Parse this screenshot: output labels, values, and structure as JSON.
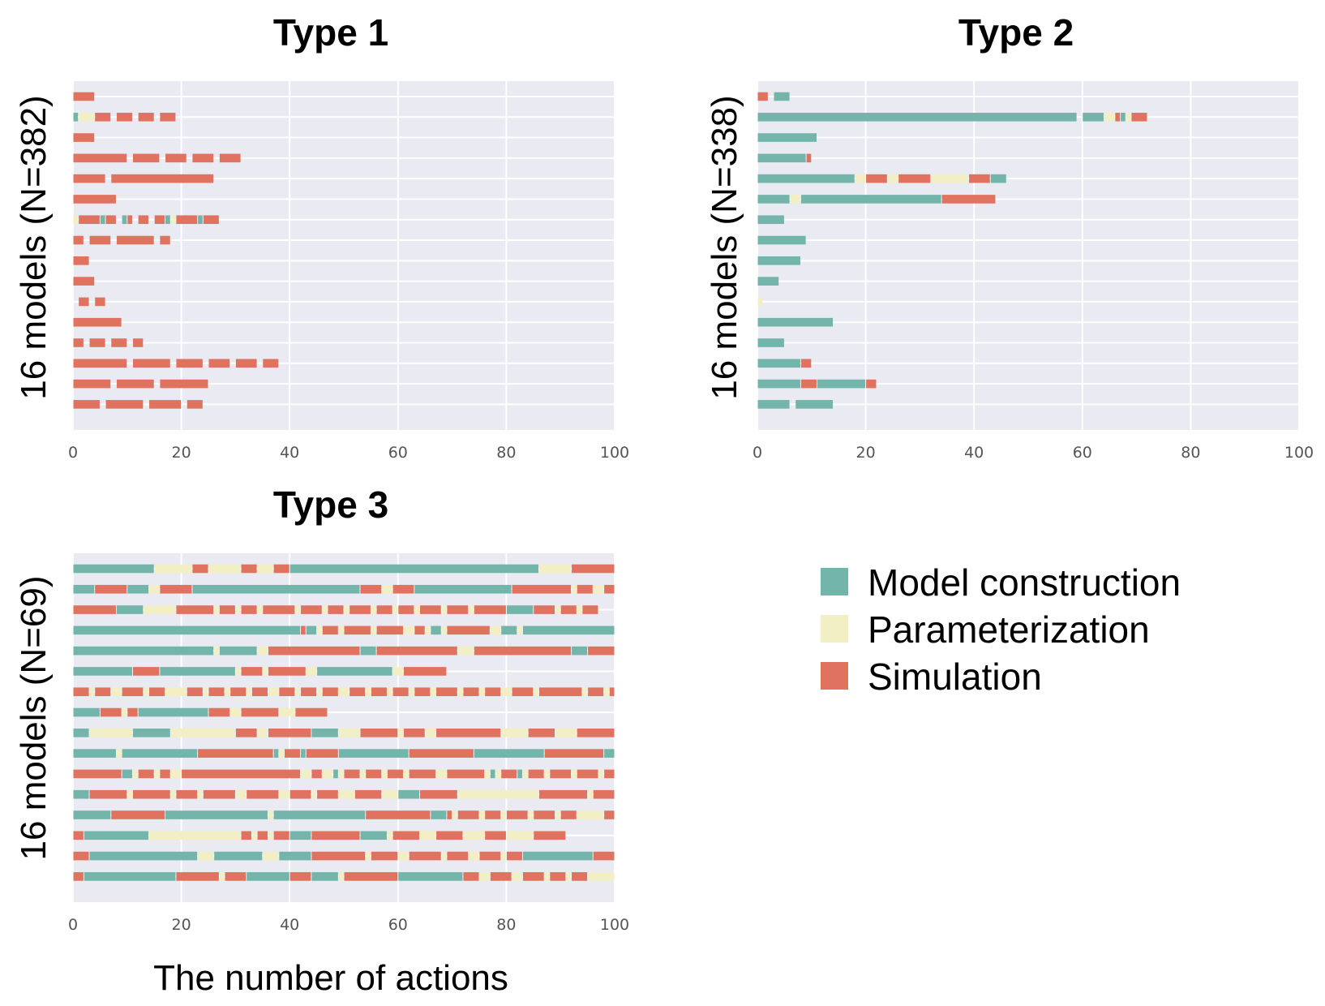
{
  "colors": {
    "model_construction": "#73b5ab",
    "parameterization": "#f2efc4",
    "simulation": "#df735f",
    "plot_background": "#eaeaf2",
    "grid": "#ffffff"
  },
  "x_axis_label": "The number of actions",
  "legend": [
    {
      "key": "C",
      "label": "Model construction",
      "color": "#73b5ab"
    },
    {
      "key": "P",
      "label": "Parameterization",
      "color": "#f2efc4"
    },
    {
      "key": "S",
      "label": "Simulation",
      "color": "#df735f"
    }
  ],
  "chart_data": [
    {
      "type": "bar",
      "subtype": "stacked-horizontal-sequence",
      "title": "Type 1",
      "ylabel": "16 models (N=382)",
      "xlabel": "",
      "xlim": [
        0,
        100
      ],
      "xticks": [
        0,
        20,
        40,
        60,
        80,
        100
      ],
      "grid": true,
      "rows": [
        "SSSS",
        "CPPPSSSGSSSGSSSGSSS",
        "SSSS",
        "SSSSSSSSSSGSSSSSGSSSSGSSSSGSSSS",
        "SSSSSSGSSSSSSSSSSSSSSSSSSS",
        "SSSSSSSS",
        "PSSSSCSSGCSGSSGSSCPSSSSCSSS",
        "SSGSSSSGSSSSSSSGSS",
        "SSS",
        "SSSS",
        "GSSGSS",
        "SSSSSSSSS",
        "SSGSSSGSSSGSS",
        "SSSSSSSSSSGSSSSSSSGSSSSSGSSSSGSSSSGSSS",
        "SSSSSSSGSSSSSSSGSSSSSSSSS",
        "SSSSSGSSSSSSSGSSSSSSGSSS"
      ]
    },
    {
      "type": "bar",
      "subtype": "stacked-horizontal-sequence",
      "title": "Type 2",
      "ylabel": "16 models (N=338)",
      "xlabel": "",
      "xlim": [
        0,
        100
      ],
      "xticks": [
        0,
        20,
        40,
        60,
        80,
        100
      ],
      "grid": true,
      "rows": [
        "SSGCCC",
        "CCCCCCCCCCCCCCCCCCCCCCCCCCCCCCCCCCCCCCCCCCCCCCCCCCCCCCCCCCCGCCCCPPSCPSSS",
        "CCCCCCCCCCC",
        "CCCCCCCCCS",
        "CCCCCCCCCCCCCCCCCCPPSSSSPPSSSSSSPPPPPPPSSSSCCC",
        "CCCCCCPPCCCCCCCCCCCCCCCCCCCCCCCCCCSSSSSSSSSS",
        "CCCCC",
        "CCCCCCCCC",
        "CCCCCCCC",
        "CCCC",
        "P",
        "CCCCCCCCCCCCCC",
        "CCCCC",
        "CCCCCCCCSS",
        "CCCCCCCCSSSCCCCCCCCCSS",
        "CCCCCCGCCCCCCC"
      ]
    },
    {
      "type": "bar",
      "subtype": "stacked-horizontal-sequence",
      "title": "Type 3",
      "ylabel": "16 models (N=69)",
      "xlabel": "The number of actions",
      "xlim": [
        0,
        100
      ],
      "xticks": [
        0,
        20,
        40,
        60,
        80,
        100
      ],
      "grid": true,
      "rows": [
        "CCCCCCCCCCCCCCCPPPPPPPSSSPPPPPPSSSPPPSSSCCCCCCCCCCCCCCCCCCCCCCCCCCCCCCCCCCCCCCCCCCCCCCPPPPPPSSSSSSSSS",
        "CCCCSSSSSSCCCCPPSSSSSSCCCCCCCCCCCCCCCCCCCCCCCCCCCCCCCSSSSPPSSSSCCCCCCCCCCCCCCCCCCSSSSSSSSSSSPSSSPPSSSS",
        "SSSSSSSSCCCCCPPPPPPSSSSSSSPSSSPSSSPSSSSSSPSSSSPSSSPSSSSPSSSPSSSPSSSSPSSSSPSSSSSSCCCCCSSSSPSSSPSSS",
        "CCCCCCCCCCCCCCCCCCCCCCCCCCCCCCCCCCCCCCCCCCSCCPSSSPSSSSSPSSSSSPPSSPCCPSSSSSSSSPPCCCPCCCCCCCCCCCCCCCCCCCCCC",
        "CCCCCCCCCCCCCCCCCCCCCCCCCCPCCCCCCCPPSSSSSSSSSSSSSSSSSCCCSSSSSSSSSSSSSSSPPPSSSSSSSSSSSSSSSSSSCCCSSSSSSSSSSSSS",
        "CCCCCCCCCCCSSSSSCCCCCCCCCCCCCCPSSSSPSSSSSSSPPCCCCCCCCCCCCCCPPSSSSSSSS",
        "SSSPSSSPPSSSSPSSSPPPPSSSPSSSPSSSPSSSPPSSSPSSSPSSSPPSSSPSSSPSSSPSSSPSSSSPSSSPSSSPPSSSSPSSSSSSSSPSSSPS",
        "CCCCCSSSSPSSCCCCCCCCCCCCCSSSSPPSSSSSSSPPPSSSSSS",
        "CCCPPPPPPPPCCCCCCCPPPPPPPPPPPPSSSSPPSSSSSSSSCCCCCPPPPSSSSSSSPSSSSPPSSSSSSSSSSSSPPPPPSSSSSPPPPSSSSSSSSS",
        "CCCCCCCCPCCCCCCCCCCCCCCSSSSSSSSSSSSSSCPSSSCSSSSSSCCCCCCCCCCCCCSSSSSSSSSSSSCCCCCCCCCCCCCSSSSSSSSSSSCCCCPPPPSSSSSSS",
        "SSSSSSSSSCCPSSSPSSPPSSSSSSSSSSSSSSSSSSSSSSPPSSPPCPSSSPSSSPSSSPSSSSSPPSSSSSSSPCPSSSCPSSSPSSSSPSSSSPSSSSSSCPSSSS",
        "CCCSSSSSSSPSSSSSSSPSSSSPSSSSSSPPSSSSSSPPSSSSPSSSSPPPSSSSSPPPCCCCSSSSSSSPPPPPPPPPPPPPPPSSSSSSSSSPSSSS",
        "CCCCCCCSSSSSSSSSSCCCCCCCCCCCCCCCCCCCPCCCCCCCCCCCCCCCCCSSSSSSSSSSSSCCCSPSSSSPSSSPSSSSPSSSSPSSSPPPPPSSSS",
        "SSCCCCCCCCCCCCPPPPPPPPPPPPPPPPPSSPSSPSSSCCCCSSSSSSSSSCCCCCPSSSSSPPPSSSSSPPPPSSSSPPPPPSSSSSS",
        "SSSCCCCCCCCCCCCCCCCCCCCPPPCCCCCCCCCPPPCCCCCCSSSSSSSSSSPSSSSSPPSSSSSSPSSSSPPSSSSPSSSCCCCCCCCCCCCCSSSSSS",
        "SSCCCCCCCCCCCCCCCCCSSSSSSSSPSSSSCCCCCCCCSSSSCCCCCPSSSSSSSSSSCCCCCCCCCCCCSSSPPSSSSPPSSSSPSSSPSSSPPPPPSSSSC"
      ]
    }
  ]
}
